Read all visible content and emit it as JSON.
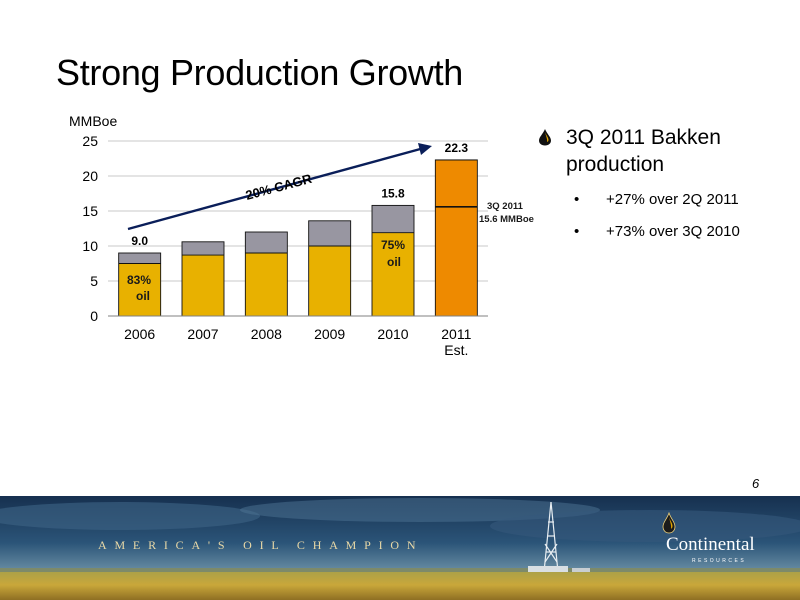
{
  "slide": {
    "title": "Strong Production Growth",
    "page_number": "6"
  },
  "chart_data": {
    "type": "bar",
    "stacked": true,
    "ylabel": "MMBoe",
    "ylim": [
      0,
      25
    ],
    "yticks": [
      "0",
      "5",
      "10",
      "15",
      "20",
      "25"
    ],
    "grid": true,
    "categories": [
      "2006",
      "2007",
      "2008",
      "2009",
      "2010",
      "2011\nEst."
    ],
    "series": [
      {
        "values": [
          7.5,
          8.7,
          9.0,
          10.0,
          11.9,
          22.3
        ],
        "color_actual": "#e8b100",
        "color_estimate": "#ee8a00"
      },
      {
        "values": [
          1.5,
          1.9,
          3.0,
          3.6,
          3.9,
          0
        ],
        "color": "#9896a1"
      }
    ],
    "totals": [
      9.0,
      10.6,
      12.0,
      13.6,
      15.8,
      22.3
    ],
    "data_labels": [
      {
        "category": "2006",
        "text": "9.0"
      },
      {
        "category": "2010",
        "text": "15.8"
      },
      {
        "category": "2011\nEst.",
        "text": "22.3"
      }
    ],
    "annotations": {
      "oil_2006": [
        "83%",
        "oil"
      ],
      "oil_2010": [
        "75%",
        "oil"
      ],
      "cagr": "20% CAGR",
      "q3_2011": [
        "3Q 2011",
        "15.6 MMBoe"
      ],
      "q3_2011_value": 15.6
    },
    "colors": {
      "grid": "#b8b8b8",
      "axis": "#808080",
      "arrow": "#0a1e59"
    }
  },
  "bullets": {
    "lead": [
      "3Q 2011 Bakken",
      "production"
    ],
    "items": [
      "+27% over 2Q 2011",
      "+73% over 3Q 2010"
    ]
  },
  "banner": {
    "tagline": "AMERICA'S OIL CHAMPION",
    "logo_name": "Continental",
    "logo_sub": "RESOURCES",
    "logo_icon": "oil-drop-icon",
    "background": "oil-field-scene"
  }
}
